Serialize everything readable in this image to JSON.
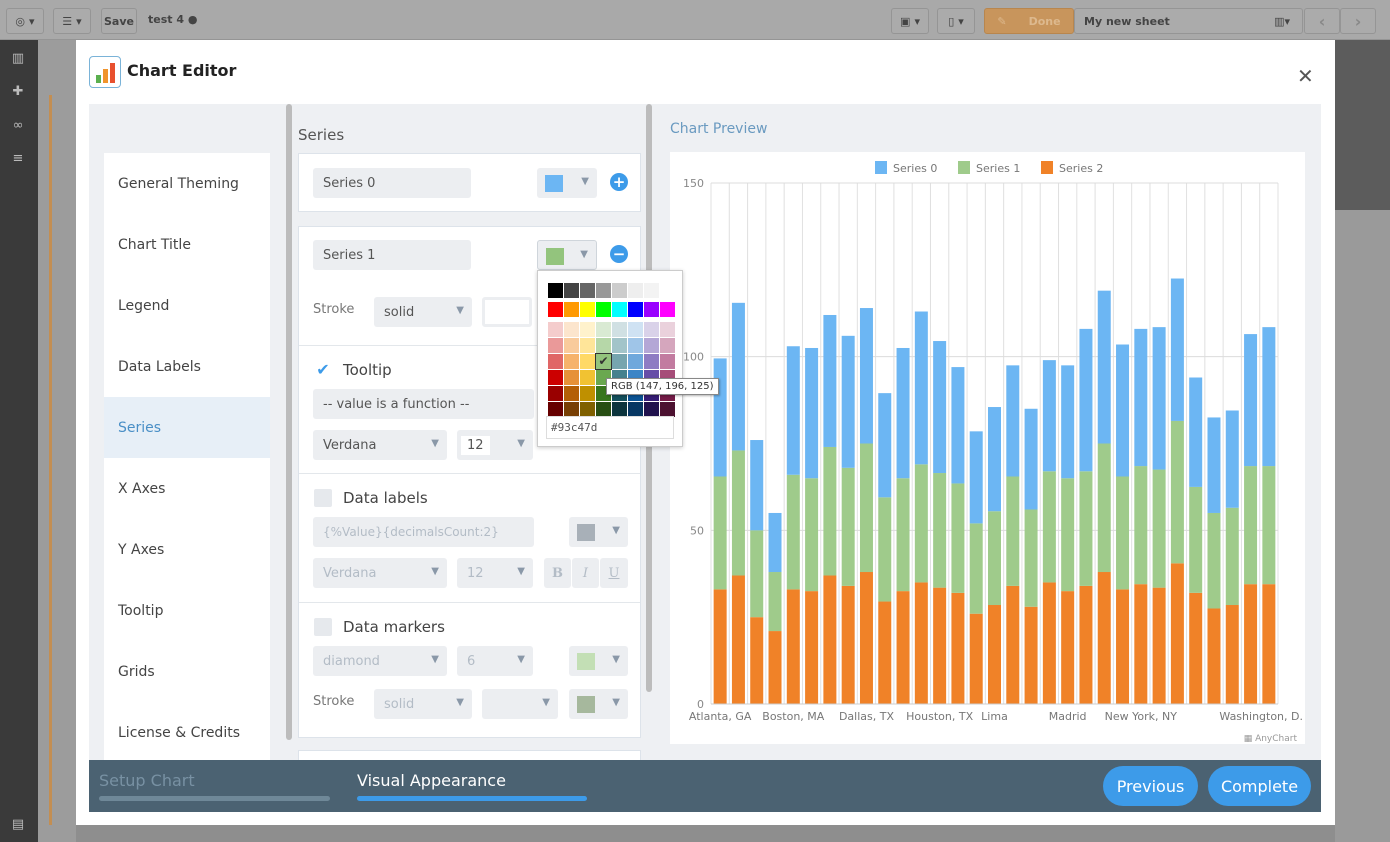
{
  "toolbar": {
    "save_label": "Save",
    "doc_title": "test 4",
    "done_label": "Done",
    "sheet_name": "My new sheet"
  },
  "modal": {
    "title": "Chart Editor",
    "nav": [
      "General Theming",
      "Chart Title",
      "Legend",
      "Data Labels",
      "Series",
      "X Axes",
      "Y Axes",
      "Tooltip",
      "Grids",
      "License & Credits"
    ],
    "active_nav": "Series",
    "series_heading": "Series",
    "series0": {
      "name": "Series 0",
      "color": "#6cb6f3"
    },
    "series1": {
      "name": "Series 1",
      "color": "#93c47d",
      "stroke_label": "Stroke",
      "stroke_style": "solid"
    },
    "tooltip": {
      "label": "Tooltip",
      "checked": true,
      "format": "-- value is a function --",
      "font": "Verdana",
      "size": "12"
    },
    "data_labels": {
      "label": "Data labels",
      "checked": false,
      "format": "{%Value}{decimalsCount:2}",
      "font": "Verdana",
      "size": "12",
      "bold": "B",
      "italic": "I",
      "underline": "U"
    },
    "data_markers": {
      "label": "Data markers",
      "checked": false,
      "type": "diamond",
      "size": "6",
      "stroke_label": "Stroke",
      "stroke_style": "solid"
    },
    "picker": {
      "hex": "#93c47d",
      "tooltip": "RGB (147, 196, 125)",
      "selected": "#93c47d",
      "rows": [
        [
          "#000000",
          "#444444",
          "#666666",
          "#999999",
          "#cccccc",
          "#eeeeee",
          "#f3f3f3",
          "#ffffff"
        ],
        [
          "#ff0000",
          "#ff9900",
          "#ffff00",
          "#00ff00",
          "#00ffff",
          "#0000ff",
          "#9900ff",
          "#ff00ff"
        ],
        [
          "#f4cccc",
          "#fce5cd",
          "#fff2cc",
          "#d9ead3",
          "#d0e0e3",
          "#cfe2f3",
          "#d9d2e9",
          "#ead1dc"
        ],
        [
          "#ea9999",
          "#f9cb9c",
          "#ffe599",
          "#b6d7a8",
          "#a2c4c9",
          "#9fc5e8",
          "#b4a7d6",
          "#d5a6bd"
        ],
        [
          "#e06666",
          "#f6b26b",
          "#ffd966",
          "#93c47d",
          "#76a5af",
          "#6fa8dc",
          "#8e7cc3",
          "#c27ba0"
        ],
        [
          "#cc0000",
          "#e69138",
          "#f1c232",
          "#6aa84f",
          "#45818e",
          "#3d85c6",
          "#674ea7",
          "#a64d79"
        ],
        [
          "#990000",
          "#b45f06",
          "#bf9000",
          "#38761d",
          "#134f5c",
          "#0b5394",
          "#351c75",
          "#741b47"
        ],
        [
          "#660000",
          "#783f04",
          "#7f6000",
          "#274e13",
          "#0c343d",
          "#073763",
          "#20124d",
          "#4c1130"
        ]
      ]
    },
    "preview_label": "Chart Preview",
    "credit": "AnyChart",
    "steps": [
      {
        "label": "Setup Chart",
        "active": false
      },
      {
        "label": "Visual Appearance",
        "active": true
      }
    ],
    "previous_label": "Previous",
    "complete_label": "Complete"
  },
  "chart_data": {
    "type": "bar",
    "stacked": true,
    "ylim": [
      0,
      150
    ],
    "yticks": [
      0,
      50,
      100,
      150
    ],
    "grid": true,
    "legend": "top",
    "categories": [
      "Atlanta, GA",
      "",
      "",
      "",
      "Boston, MA",
      "",
      "",
      "",
      "Dallas, TX",
      "",
      "",
      "",
      "Houston, TX",
      "",
      "",
      "Lima",
      "",
      "",
      "",
      "Madrid",
      "",
      "",
      "",
      "New York, NY",
      "",
      "",
      "",
      "",
      "",
      "",
      "Washington, D."
    ],
    "series": [
      {
        "name": "Series 0",
        "color": "#6cb6f3",
        "values": [
          34,
          42.5,
          26,
          17,
          37,
          37.5,
          38,
          38,
          39,
          30,
          37.5,
          44,
          38,
          33.5,
          26.5,
          30,
          32,
          29,
          32,
          32.5,
          41,
          44,
          38,
          39.5,
          41,
          41,
          31.5,
          27.5,
          28,
          38,
          40
        ]
      },
      {
        "name": "Series 1",
        "color": "#9fcb8b",
        "values": [
          32.5,
          36,
          25,
          17,
          33,
          32.5,
          37,
          34,
          37,
          30,
          32.5,
          34,
          33,
          31.5,
          26,
          27,
          31.5,
          28,
          32,
          32.5,
          33,
          37,
          32.5,
          34,
          34,
          41,
          30.5,
          27.5,
          28,
          34,
          34
        ]
      },
      {
        "name": "Series 2",
        "color": "#f08228",
        "values": [
          33,
          37,
          25,
          21,
          33,
          32.5,
          37,
          34,
          38,
          29.5,
          32.5,
          35,
          33.5,
          32,
          26,
          28.5,
          34,
          28,
          35,
          32.5,
          34,
          38,
          33,
          34.5,
          33.5,
          40.5,
          32,
          27.5,
          28.5,
          34.5,
          34.5
        ]
      }
    ]
  }
}
